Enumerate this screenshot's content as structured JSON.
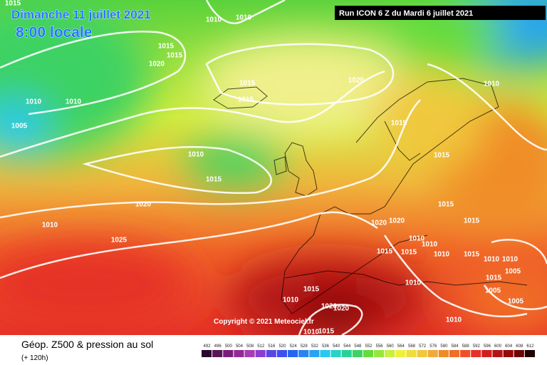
{
  "header": {
    "date": "Dimanche 11 juillet 2021",
    "time": "8:00 locale",
    "run": "Run ICON 6 Z du Mardi 6 juillet 2021"
  },
  "copyright": "Copyright © 2021 Meteociel.fr",
  "footer": {
    "title": "Géop. Z500 & pression au sol",
    "lead": "(+ 120h)"
  },
  "isobars": [
    1015,
    1010,
    1010,
    1015,
    1015,
    1020,
    1010,
    1010,
    1005,
    1015,
    1015,
    1020,
    1010,
    1015,
    1010,
    1015,
    1015,
    1020,
    1015,
    1010,
    1020,
    1020,
    1015,
    1025,
    1010,
    1010,
    1015,
    1015,
    1010,
    1015,
    1010,
    1010,
    1005,
    1015,
    1010,
    1005,
    1005,
    1010,
    1015,
    1020,
    1020,
    1010,
    1015,
    1010
  ],
  "legend": {
    "labels": [
      492,
      496,
      500,
      504,
      508,
      512,
      516,
      520,
      524,
      528,
      532,
      536,
      540,
      544,
      548,
      552,
      556,
      560,
      564,
      568,
      572,
      576,
      580,
      584,
      588,
      592,
      596,
      600,
      604,
      608,
      612
    ],
    "colors": [
      "#2a0a2a",
      "#5a145a",
      "#7a1e7a",
      "#962896",
      "#a83cb4",
      "#8c3cd2",
      "#5a46e6",
      "#3c50f0",
      "#2864f0",
      "#2884f0",
      "#28a4f0",
      "#28c8f0",
      "#28d2c8",
      "#28d296",
      "#3cd264",
      "#64dc3c",
      "#96e63c",
      "#c8f03c",
      "#f0f03c",
      "#f0dc3c",
      "#f0c83c",
      "#f0aa3c",
      "#f08c28",
      "#f06e28",
      "#f05028",
      "#e63228",
      "#d21e1e",
      "#b41414",
      "#960a0a",
      "#6e0505",
      "#1e0000"
    ]
  }
}
